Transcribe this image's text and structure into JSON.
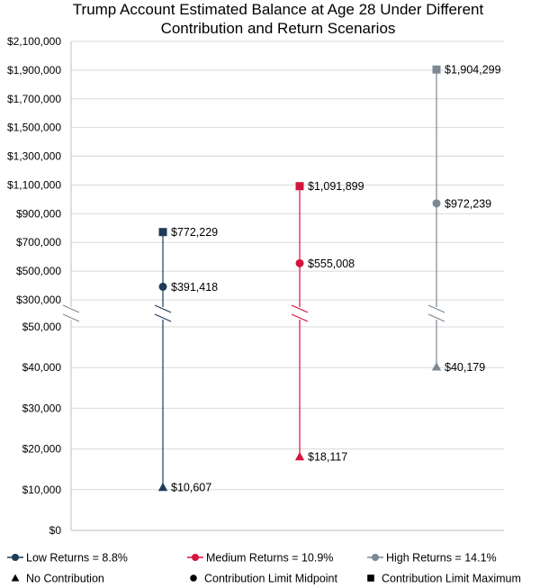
{
  "colors": {
    "low": "#1f3b5a",
    "medium": "#d4143c",
    "high": "#7c8894",
    "grid": "#d9d9d9",
    "axis": "#bfbfbf"
  },
  "chart_data": {
    "type": "scatter",
    "title_lines": [
      "Trump Account Estimated Balance at Age 28 Under Different",
      "Contribution and Return Scenarios"
    ],
    "y_axis": {
      "broken": true,
      "lower_segment": {
        "range": [
          0,
          50000
        ],
        "ticks": [
          0,
          10000,
          20000,
          30000,
          40000,
          50000
        ]
      },
      "upper_segment": {
        "range": [
          300000,
          2100000
        ],
        "ticks": [
          300000,
          500000,
          700000,
          900000,
          1100000,
          1300000,
          1500000,
          1700000,
          1900000,
          2100000
        ]
      },
      "tick_labels": [
        "$0",
        "$10,000",
        "$20,000",
        "$30,000",
        "$40,000",
        "$50,000",
        "$300,000",
        "$500,000",
        "$700,000",
        "$900,000",
        "$1,100,000",
        "$1,300,000",
        "$1,500,000",
        "$1,700,000",
        "$1,900,000",
        "$2,100,000"
      ]
    },
    "grid": true,
    "legend_position": "bottom",
    "series": [
      {
        "key": "low",
        "name": "Low Returns = 8.8%",
        "color": "#1f3b5a",
        "points": [
          {
            "marker": "triangle",
            "value": 10607,
            "label": "$10,607"
          },
          {
            "marker": "circle",
            "value": 391418,
            "label": "$391,418"
          },
          {
            "marker": "square",
            "value": 772229,
            "label": "$772,229"
          }
        ]
      },
      {
        "key": "medium",
        "name": "Medium Returns = 10.9%",
        "color": "#d4143c",
        "points": [
          {
            "marker": "triangle",
            "value": 18117,
            "label": "$18,117"
          },
          {
            "marker": "circle",
            "value": 555008,
            "label": "$555,008"
          },
          {
            "marker": "square",
            "value": 1091899,
            "label": "$1,091,899"
          }
        ]
      },
      {
        "key": "high",
        "name": "High Returns = 14.1%",
        "color": "#7c8894",
        "points": [
          {
            "marker": "triangle",
            "value": 40179,
            "label": "$40,179"
          },
          {
            "marker": "circle",
            "value": 972239,
            "label": "$972,239"
          },
          {
            "marker": "square",
            "value": 1904299,
            "label": "$1,904,299"
          }
        ]
      }
    ],
    "marker_legend": [
      {
        "marker": "triangle",
        "name": "No Contribution"
      },
      {
        "marker": "circle",
        "name": "Contribution Limit Midpoint"
      },
      {
        "marker": "square",
        "name": "Contribution Limit Maximum"
      }
    ]
  }
}
